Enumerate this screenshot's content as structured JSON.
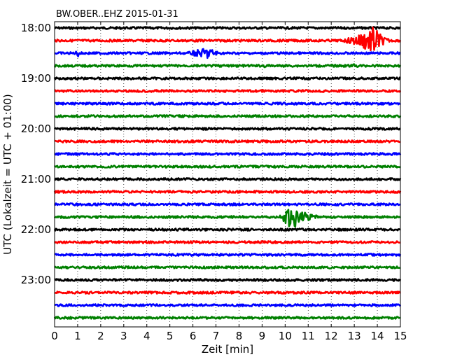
{
  "chart_data": {
    "type": "line",
    "title": "BW.OBER..EHZ 2015-01-31",
    "xlabel": "Zeit  [min]",
    "ylabel": "UTC (Lokalzeit = UTC + 01:00)",
    "xlim": [
      0,
      15
    ],
    "x_ticks": [
      "0",
      "1",
      "2",
      "3",
      "4",
      "5",
      "6",
      "7",
      "8",
      "9",
      "10",
      "11",
      "12",
      "13",
      "14",
      "15"
    ],
    "y_ticks": [
      "18:00",
      "19:00",
      "20:00",
      "21:00",
      "22:00",
      "23:00"
    ],
    "grid": "vertical dotted",
    "row_minutes": 15,
    "color_cycle": [
      "#000000",
      "#ff0000",
      "#0000ff",
      "#008000"
    ],
    "rows": [
      {
        "start": "18:00",
        "color": "#000000",
        "events": []
      },
      {
        "start": "18:15",
        "color": "#ff0000",
        "events": [
          {
            "from_min": 12.2,
            "to_min": 14.8,
            "peak_min": 13.9,
            "amplitude": 3.0
          }
        ]
      },
      {
        "start": "18:30",
        "color": "#0000ff",
        "events": [
          {
            "from_min": 0.8,
            "to_min": 1.4,
            "peak_min": 1.0,
            "amplitude": 0.8
          },
          {
            "from_min": 5.3,
            "to_min": 7.7,
            "peak_min": 6.7,
            "amplitude": 1.3
          }
        ]
      },
      {
        "start": "18:45",
        "color": "#008000",
        "events": [
          {
            "from_min": 8.8,
            "to_min": 10.0,
            "peak_min": 9.1,
            "amplitude": 0.4
          },
          {
            "from_min": 12.8,
            "to_min": 13.7,
            "peak_min": 13.0,
            "amplitude": 0.5
          }
        ]
      },
      {
        "start": "19:00",
        "color": "#000000",
        "events": []
      },
      {
        "start": "19:15",
        "color": "#ff0000",
        "events": [
          {
            "from_min": 7.1,
            "to_min": 7.6,
            "peak_min": 7.3,
            "amplitude": 0.3
          }
        ]
      },
      {
        "start": "19:30",
        "color": "#0000ff",
        "events": []
      },
      {
        "start": "19:45",
        "color": "#008000",
        "events": []
      },
      {
        "start": "20:00",
        "color": "#000000",
        "events": []
      },
      {
        "start": "20:15",
        "color": "#ff0000",
        "events": []
      },
      {
        "start": "20:30",
        "color": "#0000ff",
        "events": []
      },
      {
        "start": "20:45",
        "color": "#008000",
        "events": []
      },
      {
        "start": "21:00",
        "color": "#000000",
        "events": []
      },
      {
        "start": "21:15",
        "color": "#ff0000",
        "events": [
          {
            "from_min": 10.0,
            "to_min": 10.5,
            "peak_min": 10.2,
            "amplitude": 0.3
          }
        ]
      },
      {
        "start": "21:30",
        "color": "#0000ff",
        "events": []
      },
      {
        "start": "21:45",
        "color": "#008000",
        "events": [
          {
            "from_min": 9.6,
            "to_min": 12.0,
            "peak_min": 10.3,
            "amplitude": 2.7
          }
        ]
      },
      {
        "start": "22:00",
        "color": "#000000",
        "events": []
      },
      {
        "start": "22:15",
        "color": "#ff0000",
        "events": [
          {
            "from_min": 7.0,
            "to_min": 7.6,
            "peak_min": 7.2,
            "amplitude": 0.35
          }
        ]
      },
      {
        "start": "22:30",
        "color": "#0000ff",
        "events": []
      },
      {
        "start": "22:45",
        "color": "#008000",
        "events": []
      },
      {
        "start": "23:00",
        "color": "#000000",
        "events": []
      },
      {
        "start": "23:15",
        "color": "#ff0000",
        "events": []
      },
      {
        "start": "23:30",
        "color": "#0000ff",
        "events": []
      },
      {
        "start": "23:45",
        "color": "#008000",
        "events": []
      }
    ]
  }
}
